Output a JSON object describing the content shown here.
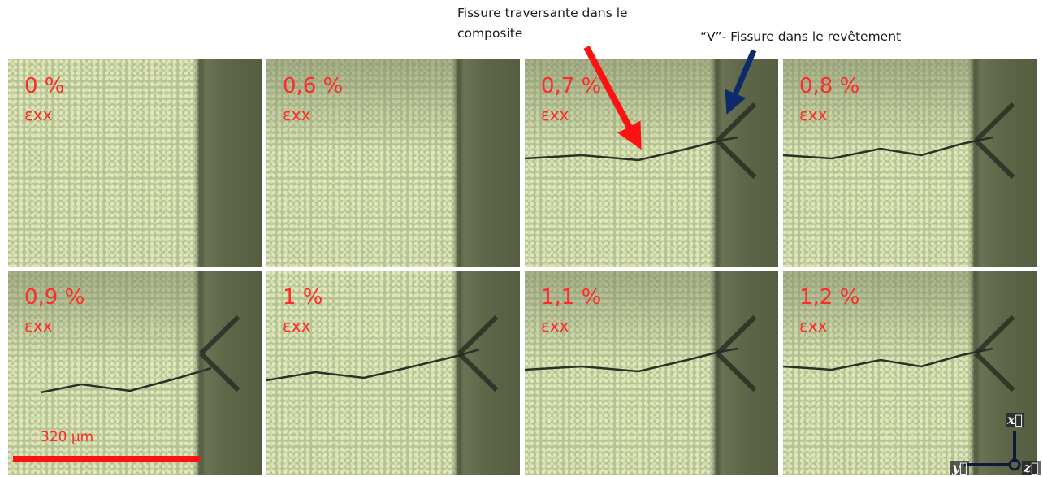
{
  "annotations": {
    "crack_composite_line1": "Fissure traversante dans le",
    "crack_composite_line2": "composite",
    "crack_coating": "“V”- Fissure dans le revêtement"
  },
  "panels": [
    {
      "strain": "0 %",
      "strain_label": "εxx",
      "crack": false
    },
    {
      "strain": "0,6 %",
      "strain_label": "εxx",
      "crack": false
    },
    {
      "strain": "0,7 %",
      "strain_label": "εxx",
      "crack": true
    },
    {
      "strain": "0,8 %",
      "strain_label": "εxx",
      "crack": true
    },
    {
      "strain": "0,9 %",
      "strain_label": "εxx",
      "crack": true
    },
    {
      "strain": "1 %",
      "strain_label": "εxx",
      "crack": true
    },
    {
      "strain": "1,1 %",
      "strain_label": "εxx",
      "crack": true
    },
    {
      "strain": "1,2 %",
      "strain_label": "εxx",
      "crack": true
    }
  ],
  "scale_bar": {
    "label": "320 µm",
    "color": "#ff1111"
  },
  "axes": {
    "x": "x⃗",
    "y": "y⃗",
    "z": "z⃗"
  },
  "colors": {
    "strain_text": "#ff2a2a",
    "composite_arrow": "#ff1111",
    "coating_arrow": "#0d2a6b"
  }
}
